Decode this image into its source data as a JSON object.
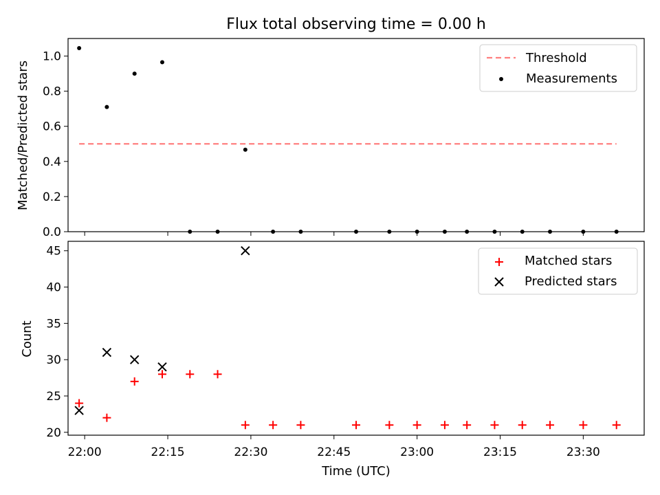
{
  "chart_data": [
    {
      "type": "scatter",
      "title": "Flux total observing time = 0.00 h",
      "xlabel": "",
      "ylabel": "Matched/Predicted stars",
      "ylim": [
        0,
        1.1
      ],
      "yticks": [
        "0.0",
        "0.2",
        "0.4",
        "0.6",
        "0.8",
        "1.0"
      ],
      "legend_position": "top-right",
      "threshold": {
        "name": "Threshold",
        "value": 0.5,
        "x_start": "21:59",
        "x_end": "23:36",
        "color": "#ff7f7f"
      },
      "series": [
        {
          "name": "Measurements",
          "marker": "dot",
          "color": "#000000",
          "x": [
            "21:59",
            "22:04",
            "22:09",
            "22:14",
            "22:19",
            "22:24",
            "22:29",
            "22:34",
            "22:39",
            "22:49",
            "22:55",
            "23:00",
            "23:05",
            "23:09",
            "23:14",
            "23:19",
            "23:24",
            "23:30",
            "23:36"
          ],
          "y": [
            1.045,
            0.71,
            0.9,
            0.965,
            0.0,
            0.0,
            0.467,
            0.0,
            0.0,
            0.0,
            0.0,
            0.0,
            0.0,
            0.0,
            0.0,
            0.0,
            0.0,
            0.0,
            0.0
          ]
        }
      ]
    },
    {
      "type": "scatter",
      "title": "",
      "xlabel": "Time (UTC)",
      "ylabel": "Count",
      "ylim": [
        19.6,
        46.3
      ],
      "yticks": [
        "20",
        "25",
        "30",
        "35",
        "40",
        "45"
      ],
      "xlim": [
        "21:57",
        "23:41"
      ],
      "xticks": [
        "22:00",
        "22:15",
        "22:30",
        "22:45",
        "23:00",
        "23:15",
        "23:30"
      ],
      "legend_position": "top-right",
      "series": [
        {
          "name": "Matched stars",
          "marker": "plus",
          "color": "#ff0000",
          "x": [
            "21:59",
            "22:04",
            "22:09",
            "22:14",
            "22:19",
            "22:24",
            "22:29",
            "22:34",
            "22:39",
            "22:49",
            "22:55",
            "23:00",
            "23:05",
            "23:09",
            "23:14",
            "23:19",
            "23:24",
            "23:30",
            "23:36"
          ],
          "y": [
            24,
            22,
            27,
            28,
            28,
            28,
            21,
            21,
            21,
            21,
            21,
            21,
            21,
            21,
            21,
            21,
            21,
            21,
            21
          ]
        },
        {
          "name": "Predicted stars",
          "marker": "x",
          "color": "#000000",
          "x": [
            "21:59",
            "22:04",
            "22:09",
            "22:14",
            "22:29"
          ],
          "y": [
            23,
            31,
            30,
            29,
            45
          ]
        }
      ]
    }
  ]
}
